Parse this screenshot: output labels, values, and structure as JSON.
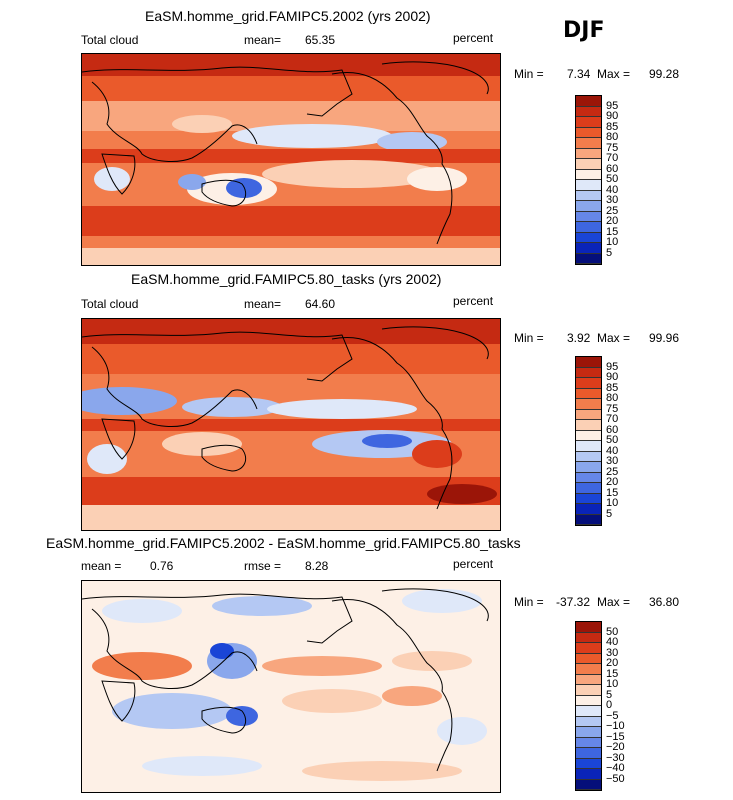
{
  "season": "DJF",
  "panels": [
    {
      "title": "EaSM.homme_grid.FAMIPC5.2002 (yrs 2002)",
      "left_label": "Total cloud",
      "center_label": "mean=",
      "center_value": "65.35",
      "right_label": "percent",
      "min_label": "Min =",
      "min_value": "7.34",
      "max_label": "Max =",
      "max_value": "99.28",
      "colorbar_ticks": [
        "95",
        "90",
        "85",
        "80",
        "75",
        "70",
        "60",
        "50",
        "40",
        "30",
        "25",
        "20",
        "15",
        "10",
        "5"
      ],
      "colors": [
        "#9b1508",
        "#c52a12",
        "#dc3d1b",
        "#ea5a2b",
        "#f27d4c",
        "#f8a67e",
        "#fbd0b5",
        "#fdf0e6",
        "#dfe8f9",
        "#b4c8f3",
        "#8aa7ec",
        "#6687e8",
        "#3e66e0",
        "#1a45d6",
        "#0a24b8",
        "#050f7a"
      ]
    },
    {
      "title": "EaSM.homme_grid.FAMIPC5.80_tasks (yrs 2002)",
      "left_label": "Total cloud",
      "center_label": "mean=",
      "center_value": "64.60",
      "right_label": "percent",
      "min_label": "Min =",
      "min_value": "3.92",
      "max_label": "Max =",
      "max_value": "99.96",
      "colorbar_ticks": [
        "95",
        "90",
        "85",
        "80",
        "75",
        "70",
        "60",
        "50",
        "40",
        "30",
        "25",
        "20",
        "15",
        "10",
        "5"
      ],
      "colors": [
        "#9b1508",
        "#c52a12",
        "#dc3d1b",
        "#ea5a2b",
        "#f27d4c",
        "#f8a67e",
        "#fbd0b5",
        "#fdf0e6",
        "#dfe8f9",
        "#b4c8f3",
        "#8aa7ec",
        "#6687e8",
        "#3e66e0",
        "#1a45d6",
        "#0a24b8",
        "#050f7a"
      ]
    },
    {
      "title": "EaSM.homme_grid.FAMIPC5.2002 - EaSM.homme_grid.FAMIPC5.80_tasks",
      "left_label": "mean =",
      "left_value": "0.76",
      "center_label": "rmse =",
      "center_value": "8.28",
      "right_label": "percent",
      "min_label": "Min =",
      "min_value": "-37.32",
      "max_label": "Max =",
      "max_value": "36.80",
      "colorbar_ticks": [
        "50",
        "40",
        "30",
        "20",
        "15",
        "10",
        "5",
        "0",
        "−5",
        "−10",
        "−15",
        "−20",
        "−30",
        "−40",
        "−50"
      ],
      "colors": [
        "#9b1508",
        "#c52a12",
        "#dc3d1b",
        "#ea5a2b",
        "#f27d4c",
        "#f8a67e",
        "#fbd0b5",
        "#fdf0e6",
        "#dfe8f9",
        "#b4c8f3",
        "#8aa7ec",
        "#6687e8",
        "#3e66e0",
        "#1a45d6",
        "#0a24b8",
        "#050f7a"
      ]
    }
  ]
}
